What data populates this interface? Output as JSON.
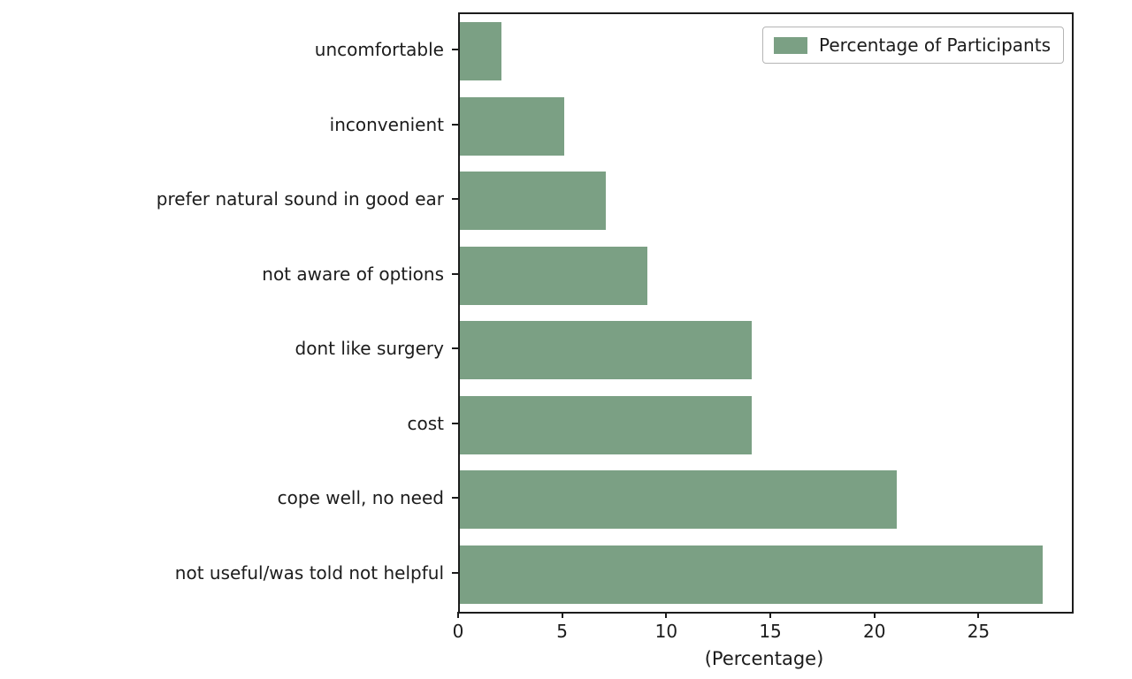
{
  "chart_data": {
    "type": "bar",
    "orientation": "horizontal",
    "title": "",
    "xlabel": "(Percentage)",
    "ylabel": "",
    "categories": [
      "uncomfortable",
      "inconvenient",
      "prefer natural sound in good ear",
      "not aware of options",
      "dont like surgery",
      "cost",
      "cope well, no need",
      "not useful/was told not helpful"
    ],
    "values": [
      2,
      5,
      7,
      9,
      14,
      14,
      21,
      28
    ],
    "xlim": [
      0,
      29.4
    ],
    "xticks": [
      0,
      5,
      10,
      15,
      20,
      25
    ],
    "grid": false,
    "bar_color": "#7ba084",
    "axis_color": "#1c1c1c",
    "legend": {
      "label": "Percentage of Participants",
      "position": "upper right"
    }
  }
}
